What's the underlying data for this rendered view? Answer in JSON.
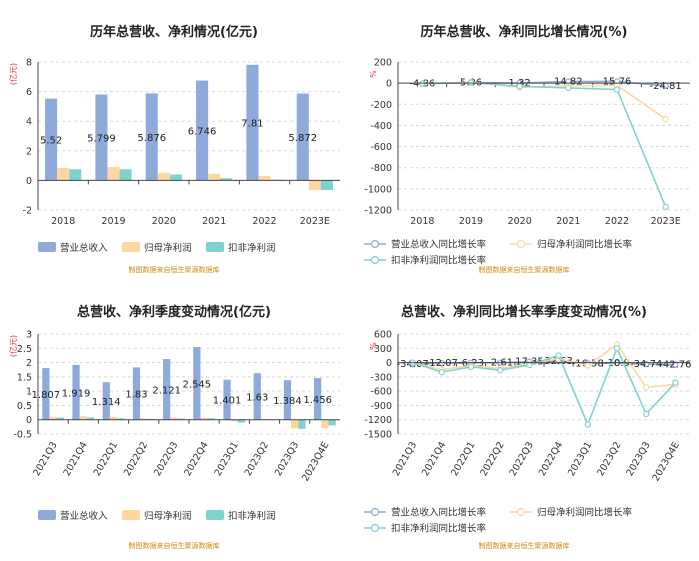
{
  "colors": {
    "revenue": "#8eaadb",
    "net_profit": "#fdd7a0",
    "deducted_profit": "#7fd2cf",
    "grid": "#d8d8d8",
    "axis": "#444444",
    "unit": "#e03030",
    "source": "#d4880f"
  },
  "source_note": "制图数据来自恒生聚源数据库",
  "chart_data": [
    {
      "type": "bar",
      "title": "历年总营收、净利情况(亿元)",
      "unit_label": "(亿元)",
      "categories": [
        "2018",
        "2019",
        "2020",
        "2021",
        "2022",
        "2023E"
      ],
      "ylim": [
        -2,
        8
      ],
      "yticks": [
        -2,
        0,
        2,
        4,
        6,
        8
      ],
      "series": [
        {
          "name": "营业总收入",
          "values": [
            5.52,
            5.799,
            5.876,
            6.746,
            7.81,
            5.872
          ],
          "labels": [
            "5.52",
            "5.799",
            "5.876",
            "6.746",
            "7.81",
            "5.872"
          ]
        },
        {
          "name": "归母净利润",
          "values": [
            0.85,
            0.9,
            0.5,
            0.45,
            0.3,
            -0.65
          ]
        },
        {
          "name": "扣非净利润",
          "values": [
            0.75,
            0.75,
            0.4,
            0.15,
            0.05,
            -0.65
          ]
        }
      ],
      "legend_position": "bottom",
      "grid": "dashed-horizontal"
    },
    {
      "type": "line",
      "title": "历年总营收、净利同比增长情况(%)",
      "unit_label": "%",
      "categories": [
        "2018",
        "2019",
        "2020",
        "2021",
        "2022",
        "2023E"
      ],
      "ylim": [
        -1200,
        200
      ],
      "yticks": [
        -1200,
        -1000,
        -800,
        -600,
        -400,
        -200,
        0,
        200
      ],
      "series": [
        {
          "name": "营业总收入同比增长率",
          "values": [
            -4.86,
            5.06,
            1.32,
            14.82,
            15.76,
            -24.81
          ],
          "labels": [
            "-4.86",
            "5.06",
            "1.32",
            "14.82",
            "15.76",
            "-24.81"
          ]
        },
        {
          "name": "归母净利润同比增长率",
          "values": [
            -5,
            10,
            -40,
            -25,
            -20,
            -340
          ]
        },
        {
          "name": "扣非净利润同比增长率",
          "values": [
            -5,
            5,
            -30,
            -45,
            -60,
            -1170
          ]
        }
      ],
      "legend_position": "bottom",
      "grid": "dashed-horizontal"
    },
    {
      "type": "bar",
      "title": "总营收、净利季度变动情况(亿元)",
      "unit_label": "(亿元)",
      "categories": [
        "2021Q3",
        "2021Q4",
        "2022Q1",
        "2022Q2",
        "2022Q3",
        "2022Q4",
        "2023Q1",
        "2023Q2",
        "2023Q3",
        "2023Q4E"
      ],
      "ylim": [
        -0.5,
        3
      ],
      "yticks": [
        -0.5,
        0,
        0.5,
        1,
        1.5,
        2,
        2.5,
        3
      ],
      "series": [
        {
          "name": "营业总收入",
          "values": [
            1.807,
            1.919,
            1.314,
            1.83,
            2.121,
            2.545,
            1.401,
            1.63,
            1.384,
            1.456
          ],
          "labels": [
            "1.807",
            "1.919",
            "1.314",
            "1.83",
            "2.121",
            "2.545",
            "1.401",
            "1.63",
            "1.384",
            "1.456"
          ]
        },
        {
          "name": "归母净利润",
          "values": [
            0.1,
            0.12,
            0.1,
            0.05,
            0.08,
            0.07,
            -0.06,
            0.02,
            -0.3,
            -0.3
          ]
        },
        {
          "name": "扣非净利润",
          "values": [
            0.08,
            0.08,
            0.05,
            0.03,
            0.04,
            0.05,
            -0.1,
            0.01,
            -0.32,
            -0.2
          ]
        }
      ],
      "legend_position": "bottom",
      "grid": "dashed-horizontal"
    },
    {
      "type": "line",
      "title": "总营收、净利同比增长率季度变动情况(%)",
      "unit_label": "%",
      "categories": [
        "2021Q3",
        "2021Q4",
        "2022Q1",
        "2022Q2",
        "2022Q3",
        "2022Q4",
        "2023Q1",
        "2023Q2",
        "2023Q3",
        "2023Q4E"
      ],
      "ylim": [
        -1500,
        600
      ],
      "yticks": [
        -1500,
        -1200,
        -900,
        -600,
        -300,
        0,
        300,
        600
      ],
      "series": [
        {
          "name": "营业总收入同比增长率",
          "values": [
            -34.07,
            -12.07,
            -6.23,
            -2.61,
            17.35,
            32.63,
            -16.58,
            -10.9,
            -34.74,
            -42.76
          ],
          "labels": [
            "-34.07",
            "-12.07",
            "-6.23",
            "-2.61",
            "17.35",
            "32.63",
            "-16.58",
            "-10.9",
            "-34.74",
            "-42.76"
          ]
        },
        {
          "name": "归母净利润同比增长率",
          "values": [
            0,
            -150,
            -60,
            -120,
            -30,
            80,
            -60,
            380,
            -520,
            -460
          ]
        },
        {
          "name": "扣非净利润同比增长率",
          "values": [
            0,
            -200,
            -90,
            -160,
            -50,
            150,
            -1300,
            300,
            -1080,
            -420
          ]
        }
      ],
      "legend_position": "bottom",
      "grid": "dashed-horizontal"
    }
  ]
}
